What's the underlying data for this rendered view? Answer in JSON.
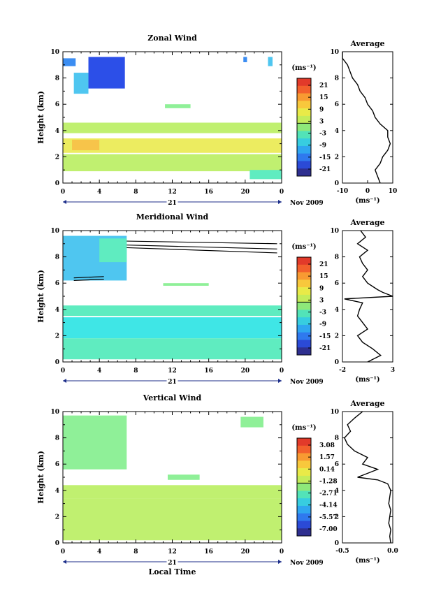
{
  "colors": {
    "colorbar": [
      "#2e2f8f",
      "#2b4ad6",
      "#2f79ee",
      "#2fa6f0",
      "#37cde0",
      "#52e3b8",
      "#8ee87a",
      "#c4ec5a",
      "#e9ea48",
      "#f8c83c",
      "#f89a32",
      "#f2602c",
      "#e23a2a"
    ],
    "wind_palette": {
      "deep_blue": "#2c4fe8",
      "mid_blue": "#3b8df2",
      "light_blue": "#4fc6f0",
      "cyan": "#3fe6e6",
      "aqua": "#5fecc0",
      "green": "#8ff098",
      "lime": "#c0f070",
      "yellow": "#ecec60",
      "orange": "#f7c44a"
    }
  },
  "shared": {
    "ylabel": "Height (km)",
    "y_ticks": [
      "0",
      "2",
      "4",
      "6",
      "8",
      "10"
    ],
    "x_ticks": [
      "0",
      "4",
      "8",
      "12",
      "16",
      "20",
      "0"
    ],
    "day_label": "21",
    "date_label": "Nov 2009",
    "xlabel": "Local Time",
    "avg_title": "Average",
    "avg_xlabel": "(ms⁻¹)",
    "cbar_unit": "(ms⁻¹)"
  },
  "chart_data": [
    {
      "type": "heatmap",
      "title": "Zonal Wind",
      "xlabel": "",
      "ylabel": "Height (km)",
      "xlim": [
        0,
        24
      ],
      "ylim": [
        0,
        10
      ],
      "colorbar": {
        "unit": "(ms⁻¹)",
        "ticks": [
          "21",
          "15",
          "9",
          "3",
          "-3",
          "-9",
          "-15",
          "-21"
        ],
        "values": [
          21,
          15,
          9,
          3,
          -3,
          -9,
          -15,
          -21
        ]
      },
      "blobs": [
        {
          "t0": 2.8,
          "t1": 6.8,
          "h0": 7.2,
          "h1": 9.6,
          "c": "deep_blue"
        },
        {
          "t0": 1.2,
          "t1": 2.8,
          "h0": 6.8,
          "h1": 8.4,
          "c": "light_blue"
        },
        {
          "t0": 0.0,
          "t1": 1.4,
          "h0": 8.9,
          "h1": 9.5,
          "c": "mid_blue"
        },
        {
          "t0": 19.8,
          "t1": 20.2,
          "h0": 9.2,
          "h1": 9.6,
          "c": "mid_blue"
        },
        {
          "t0": 22.5,
          "t1": 23.0,
          "h0": 8.9,
          "h1": 9.6,
          "c": "light_blue"
        },
        {
          "t0": 11.2,
          "t1": 14.0,
          "h0": 5.7,
          "h1": 6.0,
          "c": "green"
        },
        {
          "t0": 0.0,
          "t1": 24.0,
          "h0": 3.8,
          "h1": 4.6,
          "c": "lime"
        },
        {
          "t0": 0.0,
          "t1": 24.0,
          "h0": 2.3,
          "h1": 3.4,
          "c": "yellow"
        },
        {
          "t0": 0.0,
          "t1": 24.0,
          "h0": 0.9,
          "h1": 2.2,
          "c": "lime"
        },
        {
          "t0": 20.5,
          "t1": 24.0,
          "h0": 0.3,
          "h1": 1.0,
          "c": "aqua"
        },
        {
          "t0": 1.0,
          "t1": 4.0,
          "h0": 2.5,
          "h1": 3.3,
          "c": "orange"
        }
      ],
      "contours": [],
      "average": {
        "xlim": [
          -10,
          10
        ],
        "x_ticks": [
          "-10",
          "0",
          "10"
        ],
        "h": [
          0,
          0.5,
          1,
          1.5,
          2,
          2.5,
          3,
          3.5,
          4,
          4.5,
          5,
          5.5,
          6,
          6.5,
          7,
          7.5,
          8,
          8.5,
          9,
          9.5,
          10
        ],
        "v": [
          5,
          4,
          3,
          5,
          6,
          8,
          9,
          8,
          8,
          5,
          3,
          2,
          0,
          -1,
          -3,
          -4,
          -6,
          -7,
          -8,
          -10,
          -10
        ]
      }
    },
    {
      "type": "heatmap",
      "title": "Meridional Wind",
      "xlabel": "",
      "ylabel": "Height (km)",
      "xlim": [
        0,
        24
      ],
      "ylim": [
        0,
        10
      ],
      "colorbar": {
        "unit": "(ms⁻¹)",
        "ticks": [
          "21",
          "15",
          "9",
          "3",
          "-3",
          "-9",
          "-15",
          "-21"
        ],
        "values": [
          21,
          15,
          9,
          3,
          -3,
          -9,
          -15,
          -21
        ]
      },
      "blobs": [
        {
          "t0": 0.0,
          "t1": 7.0,
          "h0": 6.2,
          "h1": 9.6,
          "c": "light_blue"
        },
        {
          "t0": 4.0,
          "t1": 7.0,
          "h0": 7.6,
          "h1": 9.4,
          "c": "aqua"
        },
        {
          "t0": 11.0,
          "t1": 16.0,
          "h0": 5.8,
          "h1": 6.0,
          "c": "green"
        },
        {
          "t0": 0.0,
          "t1": 24.0,
          "h0": 3.5,
          "h1": 4.3,
          "c": "aqua"
        },
        {
          "t0": 0.0,
          "t1": 24.0,
          "h0": 1.8,
          "h1": 3.4,
          "c": "cyan"
        },
        {
          "t0": 0.0,
          "t1": 24.0,
          "h0": 0.2,
          "h1": 1.8,
          "c": "aqua"
        }
      ],
      "contours": [
        {
          "points": [
            [
              7.0,
              9.2
            ],
            [
              23.5,
              9.0
            ]
          ]
        },
        {
          "points": [
            [
              7.0,
              8.9
            ],
            [
              23.5,
              8.6
            ]
          ]
        },
        {
          "points": [
            [
              7.0,
              8.7
            ],
            [
              23.5,
              8.3
            ]
          ]
        },
        {
          "points": [
            [
              1.2,
              6.4
            ],
            [
              4.5,
              6.5
            ]
          ]
        },
        {
          "points": [
            [
              1.2,
              6.2
            ],
            [
              4.5,
              6.3
            ]
          ]
        }
      ],
      "average": {
        "xlim": [
          -2,
          3
        ],
        "x_ticks": [
          "-2",
          "3"
        ],
        "h": [
          0,
          0.5,
          1,
          1.5,
          2,
          2.5,
          3,
          3.5,
          4,
          4.5,
          4.8,
          5.0,
          5.3,
          5.5,
          6,
          6.5,
          7,
          7.5,
          8,
          8.5,
          9,
          9.5,
          10
        ],
        "v": [
          0.5,
          1.8,
          1.0,
          0.0,
          -0.5,
          0.5,
          0.0,
          -0.5,
          -0.3,
          0.0,
          -1.8,
          3.0,
          2.0,
          1.5,
          0.5,
          0.0,
          0.5,
          0.0,
          -0.3,
          0.5,
          -0.5,
          0.3,
          -0.2
        ]
      }
    },
    {
      "type": "heatmap",
      "title": "Vertical Wind",
      "xlabel": "Local Time",
      "ylabel": "Height (km)",
      "xlim": [
        0,
        24
      ],
      "ylim": [
        0,
        10
      ],
      "colorbar": {
        "unit": "(ms⁻¹)",
        "ticks": [
          "3.08",
          "1.57",
          "0.14",
          "-1.28",
          "-2.71",
          "-4.14",
          "-5.57",
          "-7.00"
        ],
        "values": [
          3.08,
          1.57,
          0.14,
          -1.28,
          -2.71,
          -4.14,
          -5.57,
          -7.0
        ]
      },
      "blobs": [
        {
          "t0": 0.0,
          "t1": 7.0,
          "h0": 5.6,
          "h1": 9.7,
          "c": "green"
        },
        {
          "t0": 11.5,
          "t1": 15.0,
          "h0": 4.8,
          "h1": 5.2,
          "c": "green"
        },
        {
          "t0": 19.5,
          "t1": 22.0,
          "h0": 8.8,
          "h1": 9.6,
          "c": "green"
        },
        {
          "t0": 0.0,
          "t1": 24.0,
          "h0": 3.4,
          "h1": 4.4,
          "c": "lime"
        },
        {
          "t0": 0.0,
          "t1": 24.0,
          "h0": 0.2,
          "h1": 3.4,
          "c": "lime"
        }
      ],
      "contours": [],
      "average": {
        "xlim": [
          -0.5,
          0.0
        ],
        "x_ticks": [
          "-0.5",
          "0.0"
        ],
        "h": [
          0,
          0.5,
          1,
          1.5,
          2,
          2.5,
          3,
          3.5,
          4,
          4.5,
          4.8,
          5.0,
          5.3,
          5.6,
          6,
          6.5,
          7,
          7.5,
          8,
          8.5,
          9,
          9.5,
          10
        ],
        "v": [
          -0.02,
          -0.03,
          -0.02,
          -0.04,
          -0.03,
          -0.02,
          -0.04,
          -0.03,
          -0.02,
          -0.05,
          -0.15,
          -0.35,
          -0.25,
          -0.15,
          -0.3,
          -0.25,
          -0.38,
          -0.45,
          -0.48,
          -0.42,
          -0.45,
          -0.38,
          -0.3
        ]
      }
    }
  ]
}
